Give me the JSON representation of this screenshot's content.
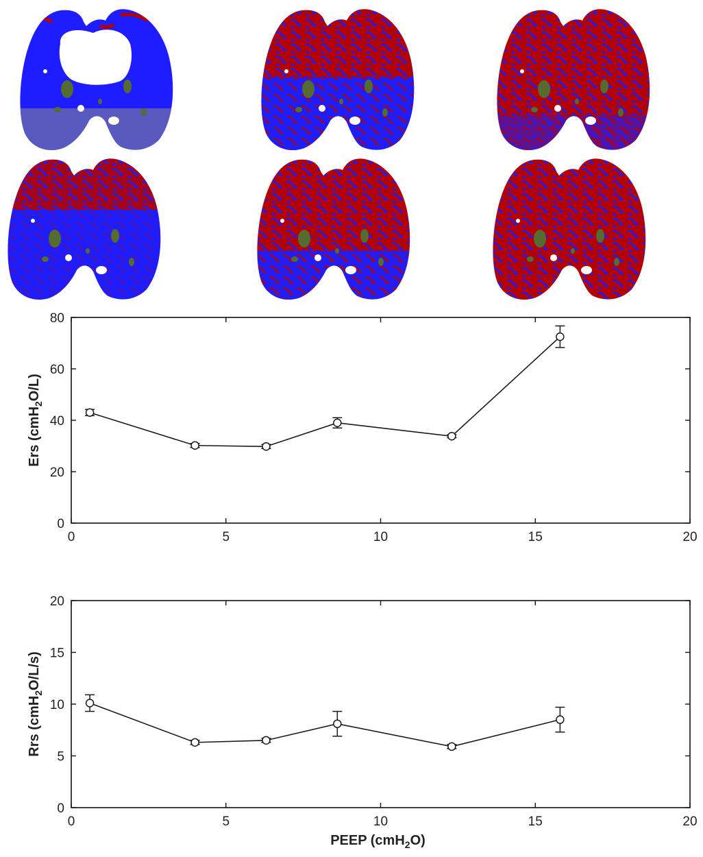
{
  "colors": {
    "lung_normal": "#1d1dff",
    "lung_hyperinflated": "#b30000",
    "lung_poorly_aerated": "#8a8a8a",
    "vessel": "#556b2f",
    "line": "#1a1a1a"
  },
  "chart_data": [
    {
      "type": "line",
      "ylabel": "Ers (cmH2O/L)",
      "ylabel_parts": {
        "pre": "Ers (cmH",
        "sub": "2",
        "post": "O/L)"
      },
      "xlim": [
        0,
        20
      ],
      "ylim": [
        0,
        80
      ],
      "xticks": [
        "0",
        "5",
        "10",
        "15",
        "20"
      ],
      "yticks": [
        "0",
        "20",
        "40",
        "60",
        "80"
      ],
      "x": [
        0.6,
        4.0,
        6.3,
        8.6,
        12.3,
        15.8
      ],
      "y": [
        43.0,
        30.2,
        29.8,
        39.0,
        33.8,
        72.5
      ],
      "yerr": [
        1.2,
        0.8,
        0.8,
        2.0,
        0.6,
        4.2
      ]
    },
    {
      "type": "line",
      "ylabel": "Rrs (cmH2O/L/s)",
      "ylabel_parts": {
        "pre": "Rrs (cmH",
        "sub": "2",
        "post": "O/L/s)"
      },
      "xlabel": "PEEP (cmH2O)",
      "xlabel_parts": {
        "pre": "PEEP (cmH",
        "sub": "2",
        "post": "O)"
      },
      "xlim": [
        0,
        20
      ],
      "ylim": [
        0,
        20
      ],
      "xticks": [
        "0",
        "5",
        "10",
        "15",
        "20"
      ],
      "yticks": [
        "0",
        "5",
        "10",
        "15",
        "20"
      ],
      "x": [
        0.6,
        4.0,
        6.3,
        8.6,
        12.3,
        15.8
      ],
      "y": [
        10.1,
        6.3,
        6.5,
        8.1,
        5.9,
        8.5
      ],
      "yerr": [
        0.8,
        0.2,
        0.2,
        1.2,
        0.2,
        1.2
      ]
    }
  ]
}
